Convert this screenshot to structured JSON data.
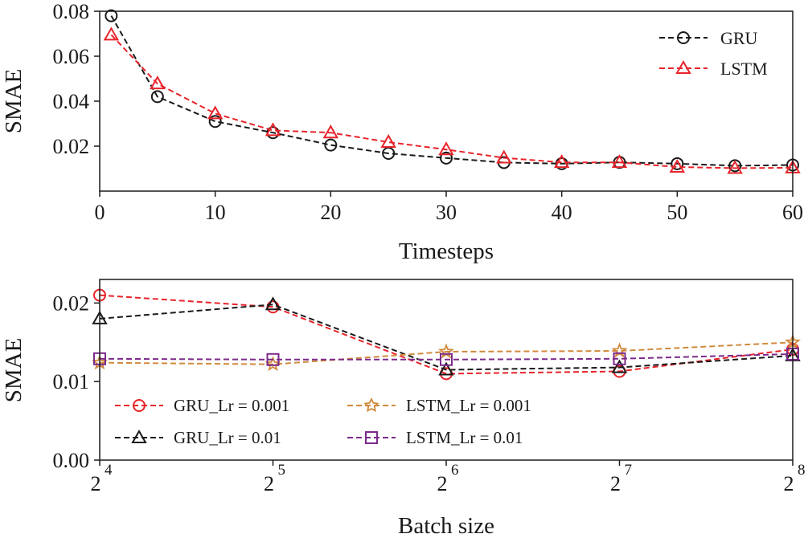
{
  "chart_data": [
    {
      "type": "line",
      "xlabel": "Timesteps",
      "ylabel": "SMAE",
      "xlim": [
        0,
        60
      ],
      "ylim": [
        0.0,
        0.08
      ],
      "xticks": [
        0,
        10,
        20,
        30,
        40,
        50,
        60
      ],
      "xtick_labels": [
        "0",
        "10",
        "20",
        "30",
        "40",
        "50",
        "60"
      ],
      "yticks": [
        0.02,
        0.04,
        0.06,
        0.08
      ],
      "ytick_labels": [
        "0.02",
        "0.04",
        "0.06",
        "0.08"
      ],
      "legend_position": "top-right",
      "x": [
        1,
        5,
        10,
        15,
        20,
        25,
        30,
        35,
        40,
        45,
        50,
        55,
        60
      ],
      "series": [
        {
          "name": "GRU",
          "color": "#1a1a1a",
          "marker": "circle",
          "values": [
            0.078,
            0.042,
            0.031,
            0.026,
            0.0205,
            0.0168,
            0.0147,
            0.0127,
            0.0122,
            0.0128,
            0.0122,
            0.0113,
            0.0116
          ]
        },
        {
          "name": "LSTM",
          "color": "#e8242a",
          "marker": "triangle",
          "values": [
            0.0695,
            0.0478,
            0.0345,
            0.027,
            0.026,
            0.0218,
            0.0185,
            0.0148,
            0.0128,
            0.0128,
            0.0107,
            0.0102,
            0.0104
          ]
        }
      ]
    },
    {
      "type": "line",
      "xlabel": "Batch size",
      "ylabel": "SMAE",
      "ylim": [
        0.0,
        0.023
      ],
      "yticks": [
        0.0,
        0.01,
        0.02
      ],
      "ytick_labels": [
        "0.00",
        "0.01",
        "0.02"
      ],
      "categories": [
        4,
        5,
        6,
        7,
        8
      ],
      "xtick_base": "2",
      "xtick_exponents": [
        "4",
        "5",
        "6",
        "7",
        "8"
      ],
      "legend_position": "bottom-left",
      "series": [
        {
          "name": "GRU_Lr = 0.001",
          "color": "#e8242a",
          "marker": "circle",
          "values": [
            0.021,
            0.0195,
            0.011,
            0.0113,
            0.0141
          ]
        },
        {
          "name": "GRU_Lr = 0.01",
          "color": "#1a1a1a",
          "marker": "triangle",
          "values": [
            0.018,
            0.0198,
            0.0115,
            0.0118,
            0.0133
          ]
        },
        {
          "name": "LSTM_Lr = 0.001",
          "color": "#d08a3c",
          "marker": "star",
          "values": [
            0.0124,
            0.0122,
            0.0138,
            0.0139,
            0.015
          ]
        },
        {
          "name": "LSTM_Lr = 0.01",
          "color": "#7b2a8a",
          "marker": "square",
          "values": [
            0.0129,
            0.0128,
            0.0128,
            0.0129,
            0.0135
          ]
        }
      ]
    }
  ]
}
